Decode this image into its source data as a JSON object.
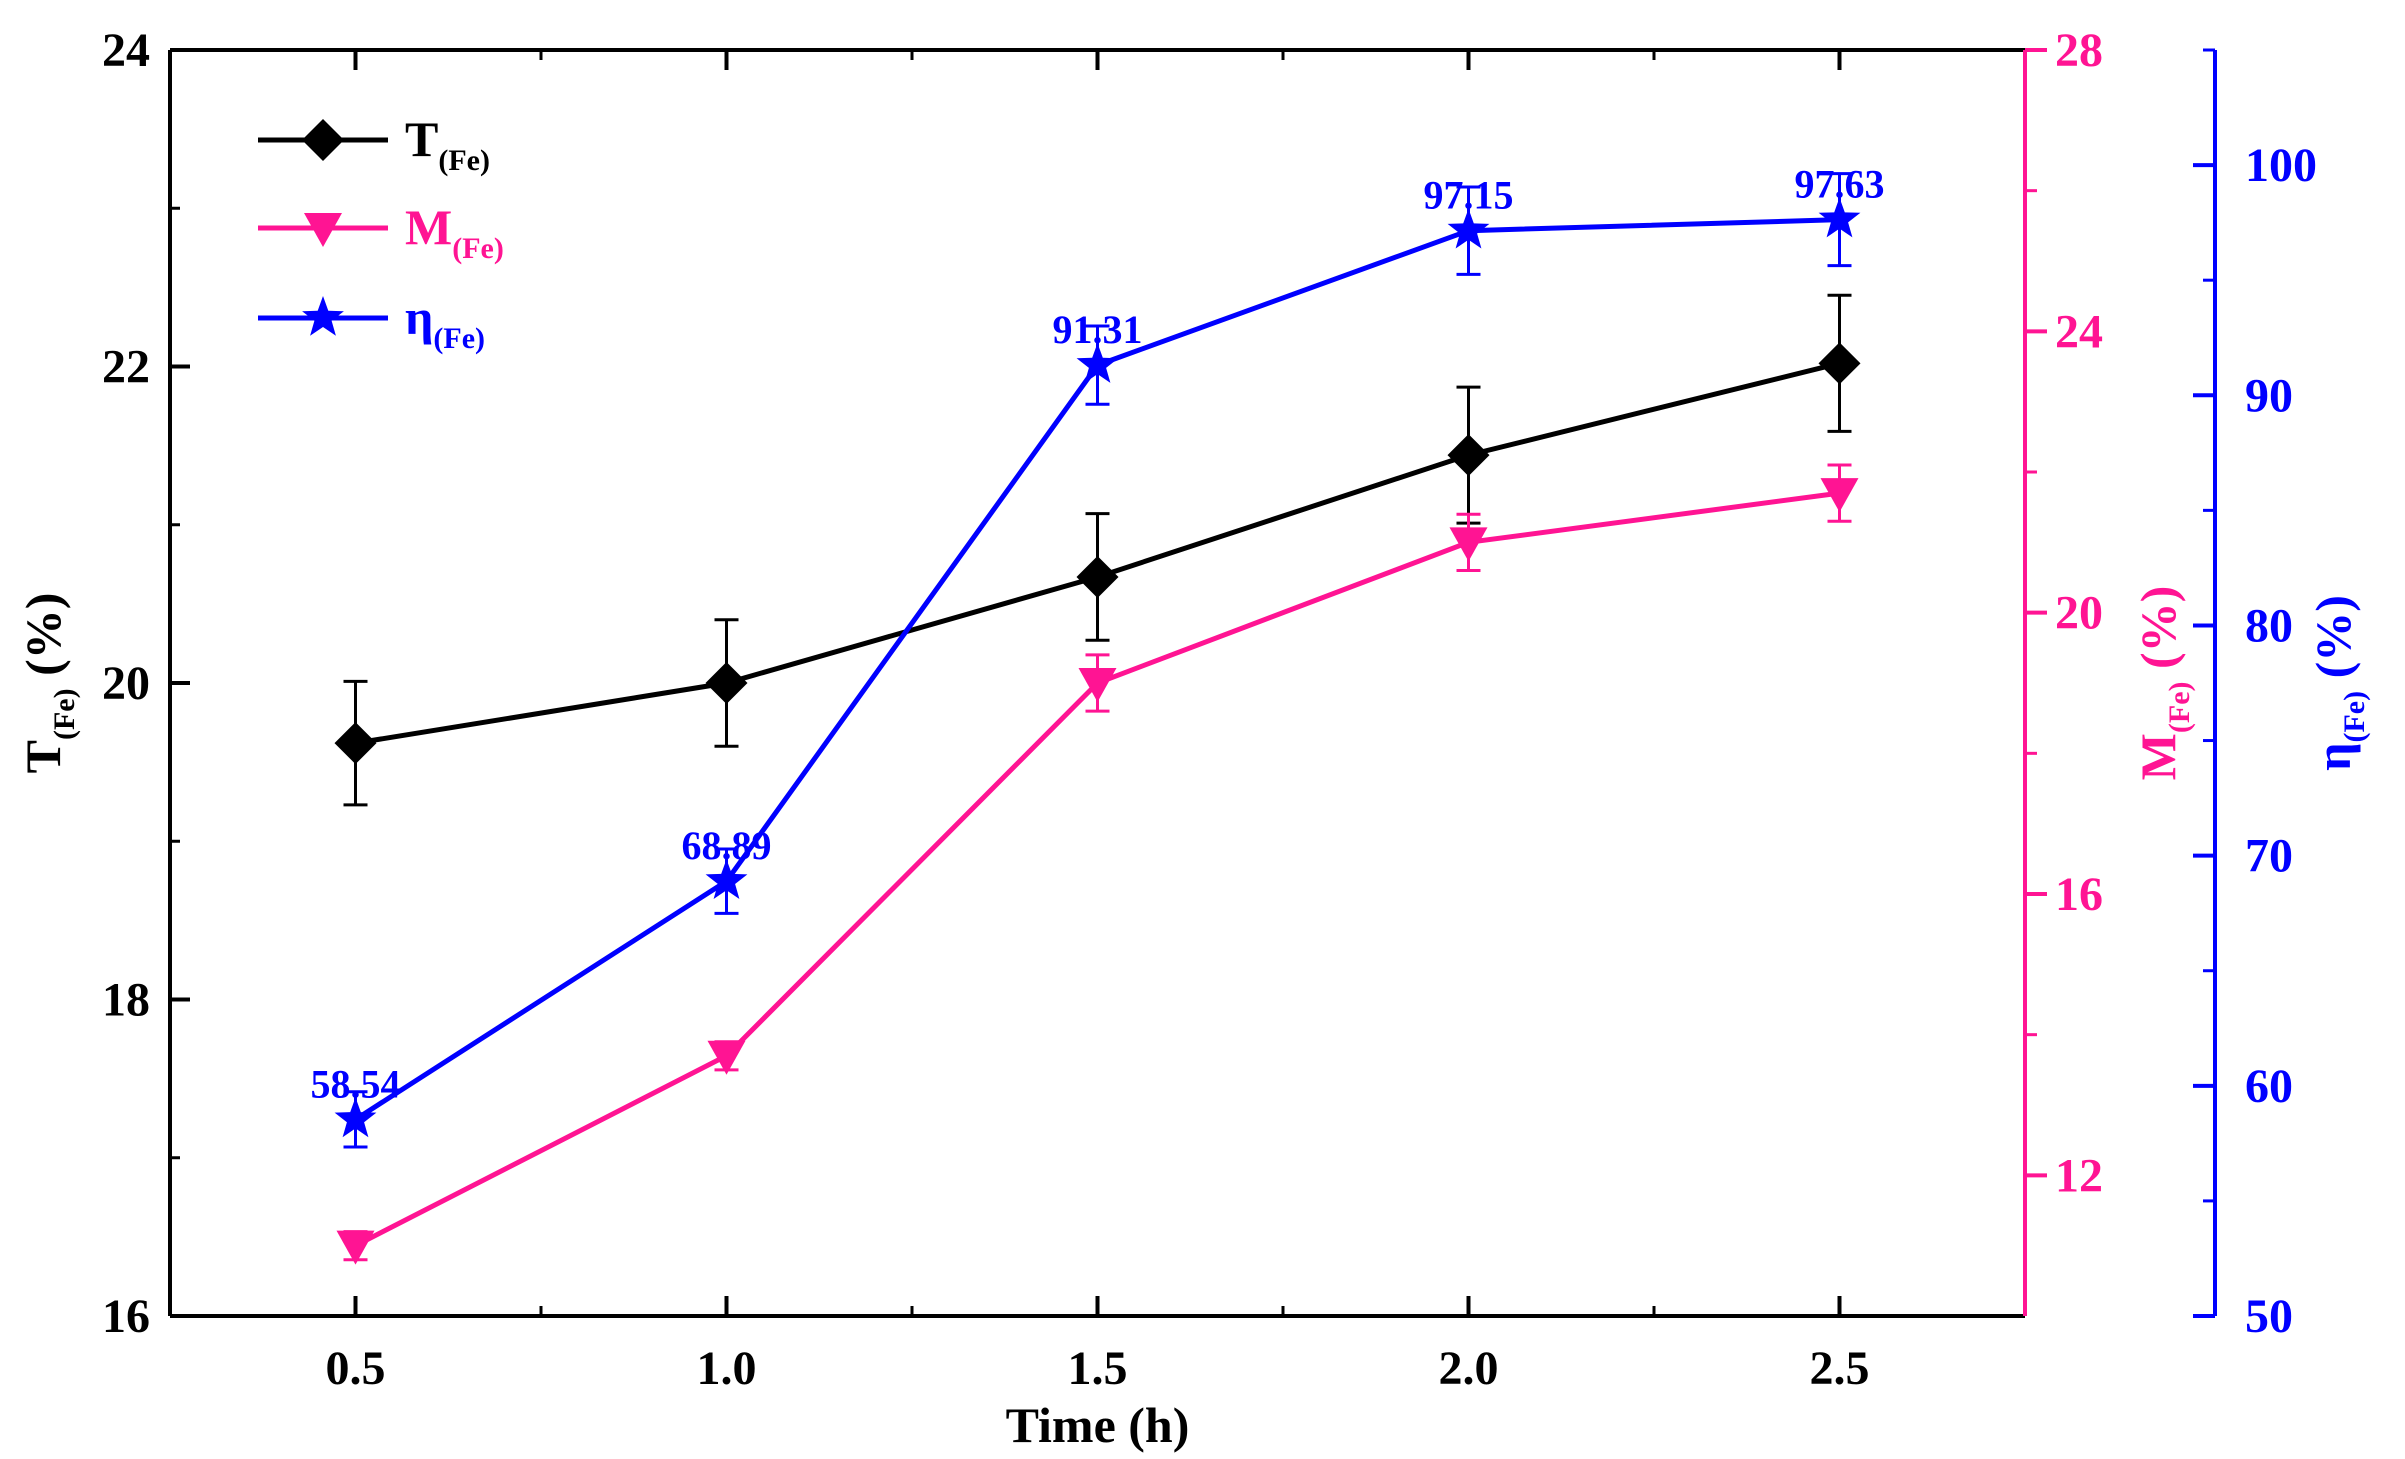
{
  "chart_data": {
    "type": "line",
    "x": [
      0.5,
      1.0,
      1.5,
      2.0,
      2.5
    ],
    "xlabel": "Time (h)",
    "xlim": [
      0.25,
      2.75
    ],
    "xticks": [
      "0.5",
      "1.0",
      "1.5",
      "2.0",
      "2.5"
    ],
    "axes": {
      "left": {
        "label_main": "T",
        "label_sub": "(Fe)",
        "label_unit": " (%)",
        "ylim": [
          16,
          24
        ],
        "ticks": [
          "16",
          "18",
          "20",
          "22",
          "24"
        ],
        "color": "#000000"
      },
      "right1": {
        "label_main": "M",
        "label_sub": "(Fe)",
        "label_unit": " (%)",
        "ylim": [
          10,
          28
        ],
        "ticks": [
          "12",
          "16",
          "20",
          "24",
          "28"
        ],
        "color": "#ff1493"
      },
      "right2": {
        "label_main": "η",
        "label_sub": "(Fe)",
        "label_unit": " (%)",
        "ylim": [
          50,
          105
        ],
        "ticks": [
          "50",
          "60",
          "70",
          "80",
          "90",
          "100"
        ],
        "color": "#0000ff"
      }
    },
    "series": [
      {
        "name_main": "T",
        "name_sub": "(Fe)",
        "axis": "left",
        "color": "#000000",
        "marker": "diamond",
        "values": [
          19.62,
          20.0,
          20.67,
          21.44,
          22.02
        ],
        "errors": [
          0.39,
          0.4,
          0.4,
          0.43,
          0.43
        ]
      },
      {
        "name_main": "M",
        "name_sub": "(Fe)",
        "axis": "right1",
        "color": "#ff1493",
        "marker": "triangle-down",
        "values": [
          11.0,
          13.7,
          19.0,
          21.0,
          21.7
        ],
        "errors": [
          0.2,
          0.2,
          0.4,
          0.4,
          0.4
        ]
      },
      {
        "name_main": "η",
        "name_sub": "(Fe)",
        "axis": "right2",
        "color": "#0000ff",
        "marker": "star",
        "values": [
          58.54,
          68.89,
          91.31,
          97.15,
          97.63
        ],
        "errors": [
          1.2,
          1.4,
          1.7,
          1.9,
          2.0
        ],
        "labels": [
          "58.54",
          "68.89",
          "91.31",
          "97.15",
          "97.63"
        ]
      }
    ],
    "legend_position": "top-left",
    "grid": false
  }
}
